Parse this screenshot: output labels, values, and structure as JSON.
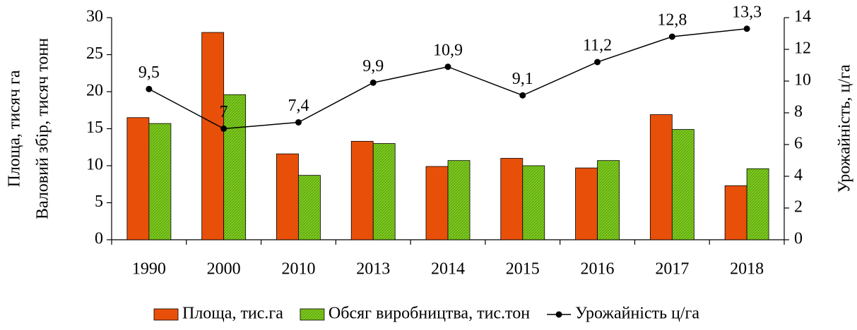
{
  "chart_data": {
    "type": "bar_line",
    "y_label_lines": [
      "Площа, тисяч га",
      "Валовий збір, тисяч тонн"
    ],
    "y2_label": "Урожайність, ц/га",
    "categories": [
      "1990",
      "2000",
      "2010",
      "2013",
      "2014",
      "2015",
      "2016",
      "2017",
      "2018"
    ],
    "series": [
      {
        "name": "Площа, тис.га",
        "color": "#e8500a",
        "values": [
          16.5,
          28,
          11.6,
          13.3,
          9.9,
          11,
          9.7,
          16.9,
          7.3
        ]
      },
      {
        "name": "Обсяг виробництва, тис.тон",
        "color": "#7ccc1c",
        "values": [
          15.7,
          19.6,
          8.7,
          13,
          10.7,
          10,
          10.7,
          14.9,
          9.6
        ]
      },
      {
        "name": "Урожайність ц/га",
        "color": "#000000",
        "axis": "y2",
        "values": [
          9.5,
          7,
          7.4,
          9.9,
          10.9,
          9.1,
          11.2,
          12.8,
          13.3
        ],
        "value_labels": [
          "9,5",
          "7",
          "7,4",
          "9,9",
          "10,9",
          "9,1",
          "11,2",
          "12,8",
          "13,3"
        ]
      }
    ],
    "ylim": [
      0,
      30
    ],
    "yticks": [
      0,
      5,
      10,
      15,
      20,
      25,
      30
    ],
    "y2lim": [
      0,
      14
    ],
    "y2ticks": [
      0,
      2,
      4,
      6,
      8,
      10,
      12,
      14
    ],
    "legend": "bottom"
  }
}
